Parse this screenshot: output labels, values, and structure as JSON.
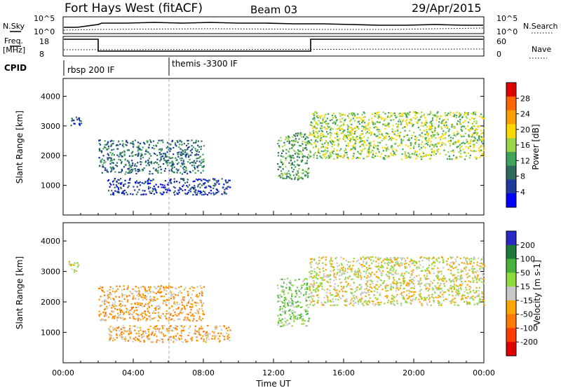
{
  "header": {
    "title": "Fort Hays West (fitACF)",
    "beam": "Beam 03",
    "date": "29/Apr/2015"
  },
  "status_panels": {
    "nsky_label": "N.Sky",
    "nsearch_label": "N.Search",
    "noise_ticks": [
      "10^5",
      "10^0"
    ],
    "freq_label_1": "Freq.",
    "freq_label_2": "[MHz]",
    "freq_ticks": [
      "18",
      "8"
    ],
    "nave_label": "Nave",
    "nave_ticks": [
      "60",
      "0"
    ],
    "cpid_label": "CPID",
    "cpid_entries": [
      "rbsp 200 IF",
      "themis -3300 IF"
    ]
  },
  "chart_data": [
    {
      "type": "heatmap",
      "name": "power",
      "ylabel": "Slant Range [km]",
      "xlabel": "",
      "xlim": [
        0,
        24
      ],
      "ylim": [
        0,
        4600
      ],
      "yticks": [
        1000,
        2000,
        3000,
        4000
      ],
      "colorbar": {
        "label": "Power [dB]",
        "ticks": [
          4,
          8,
          12,
          16,
          20,
          24,
          28
        ],
        "range": [
          0,
          32
        ],
        "colors": [
          "#0000ff",
          "#1e3c9e",
          "#2e6b5e",
          "#3fa45a",
          "#9cd44a",
          "#ffd800",
          "#ffa000",
          "#ff6600",
          "#e00000"
        ]
      },
      "echo_regions": [
        {
          "x": [
            0.3,
            1.0
          ],
          "range": [
            3000,
            3350
          ],
          "power": 5
        },
        {
          "x": [
            2.0,
            8.0
          ],
          "range": [
            1400,
            2550
          ],
          "power": 8
        },
        {
          "x": [
            2.5,
            9.5
          ],
          "range": [
            700,
            1250
          ],
          "power": 5
        },
        {
          "x": [
            12.2,
            14.0
          ],
          "range": [
            1200,
            2800
          ],
          "power": 12
        },
        {
          "x": [
            14.0,
            24.0
          ],
          "range": [
            1900,
            3500
          ],
          "power": 16
        }
      ]
    },
    {
      "type": "heatmap",
      "name": "velocity",
      "ylabel": "Slant Range [km]",
      "xlabel": "Time UT",
      "xlim": [
        0,
        24
      ],
      "ylim": [
        0,
        4600
      ],
      "yticks": [
        1000,
        2000,
        3000,
        4000
      ],
      "xticks": [
        "00:00",
        "04:00",
        "08:00",
        "12:00",
        "16:00",
        "20:00",
        "00:00"
      ],
      "colorbar": {
        "label": "Velocity [m s-1]",
        "ticks": [
          200,
          100,
          50,
          15,
          -15,
          -50,
          -100,
          -200
        ],
        "colors": [
          "#2828c8",
          "#1e7a3c",
          "#46b43c",
          "#8cdc3c",
          "#c8c8c8",
          "#ffa500",
          "#ff7a00",
          "#ff3c00",
          "#e00000"
        ]
      },
      "echo_regions": [
        {
          "x": [
            0.3,
            1.0
          ],
          "range": [
            3000,
            3350
          ],
          "velocity": 0
        },
        {
          "x": [
            2.0,
            8.0
          ],
          "range": [
            1400,
            2550
          ],
          "velocity": -30
        },
        {
          "x": [
            2.5,
            9.5
          ],
          "range": [
            700,
            1250
          ],
          "velocity": -40
        },
        {
          "x": [
            12.2,
            14.0
          ],
          "range": [
            1200,
            2800
          ],
          "velocity": 30
        },
        {
          "x": [
            14.0,
            24.0
          ],
          "range": [
            1900,
            3500
          ],
          "velocity": 0
        }
      ]
    }
  ]
}
